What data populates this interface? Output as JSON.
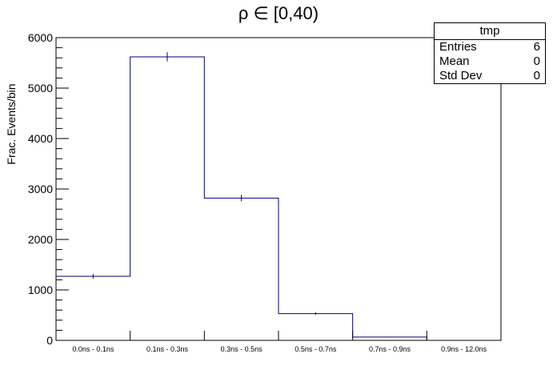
{
  "chart_data": {
    "type": "bar",
    "title": "ρ ∈ [0,40)",
    "xlabel": "",
    "ylabel": "Frac. Events/bin",
    "categories": [
      "0.0ns - 0.1ns",
      "0.1ns - 0.3ns",
      "0.3ns - 0.5ns",
      "0.5ns - 0.7ns",
      "0.7ns - 0.9ns",
      "0.9ns - 12.0ns"
    ],
    "values": [
      1270,
      5620,
      2820,
      530,
      65,
      0
    ],
    "errors": [
      45,
      90,
      65,
      25,
      8,
      0
    ],
    "ylim": [
      0,
      6000
    ],
    "yticks": [
      0,
      1000,
      2000,
      3000,
      4000,
      5000,
      6000
    ],
    "line_color": "#00007f",
    "legend": "top-right"
  },
  "stats": {
    "name": "tmp",
    "rows": [
      {
        "label": "Entries",
        "value": "6"
      },
      {
        "label": "Mean",
        "value": "0"
      },
      {
        "label": "Std Dev",
        "value": "0"
      }
    ]
  }
}
